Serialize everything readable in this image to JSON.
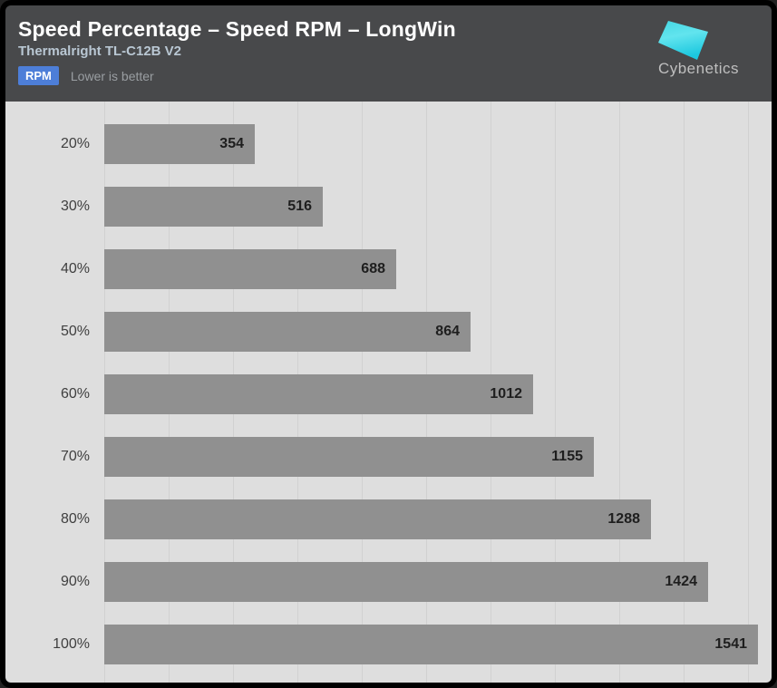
{
  "header": {
    "title": "Speed Percentage – Speed RPM – LongWin",
    "subtitle": "Thermalright TL-C12B V2",
    "unit_badge": "RPM",
    "note": "Lower is better",
    "brand": "Cybenetics"
  },
  "colors": {
    "header_bg": "#48494b",
    "chart_bg": "#dedede",
    "gridline": "#d1d1d1",
    "bar": "#909090",
    "badge_bg": "#4d7ed8",
    "subtitle_text": "#b9c7d3",
    "logo_cyan_top": "#62e4ee",
    "logo_cyan_bottom": "#1cc8df"
  },
  "chart_data": {
    "type": "bar",
    "orientation": "horizontal",
    "title": "Speed Percentage – Speed RPM – LongWin",
    "subtitle": "Thermalright TL-C12B V2",
    "unit": "RPM",
    "note": "Lower is better",
    "xlabel": "Speed RPM",
    "ylabel": "Speed Percentage",
    "categories": [
      "20%",
      "30%",
      "40%",
      "50%",
      "60%",
      "70%",
      "80%",
      "90%",
      "100%"
    ],
    "values": [
      354,
      516,
      688,
      864,
      1012,
      1155,
      1288,
      1424,
      1541
    ],
    "value_labels": "inside-end",
    "grid": "vertical-only",
    "legend": "none"
  }
}
